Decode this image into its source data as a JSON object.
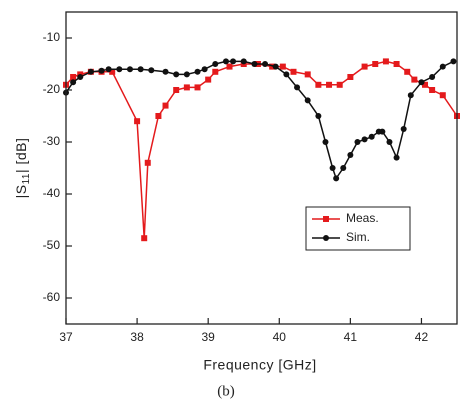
{
  "chart_data": {
    "type": "line",
    "xlabel": "Frequency [GHz]",
    "ylabel_parts": [
      "|S",
      "11",
      "| [dB]"
    ],
    "caption": "(b)",
    "xlim": [
      37,
      42.5
    ],
    "xticks": [
      37,
      38,
      39,
      40,
      41,
      42
    ],
    "ylim": [
      -65,
      -5
    ],
    "yticks": [
      -10,
      -20,
      -30,
      -40,
      -50,
      -60
    ],
    "series": [
      {
        "name": "Meas.",
        "color": "#e41a1c",
        "marker": "square",
        "x": [
          37.0,
          37.1,
          37.2,
          37.35,
          37.5,
          37.65,
          38.0,
          38.1,
          38.15,
          38.3,
          38.4,
          38.55,
          38.7,
          38.85,
          39.0,
          39.1,
          39.3,
          39.5,
          39.7,
          39.9,
          40.05,
          40.2,
          40.4,
          40.55,
          40.7,
          40.85,
          41.0,
          41.2,
          41.35,
          41.5,
          41.65,
          41.8,
          41.9,
          42.05,
          42.15,
          42.3,
          42.5
        ],
        "values": [
          -19,
          -17.5,
          -17,
          -16.5,
          -16.5,
          -16.5,
          -26,
          -48.5,
          -34,
          -25,
          -23,
          -20,
          -19.5,
          -19.5,
          -18,
          -16.5,
          -15.5,
          -15,
          -15,
          -15.5,
          -15.5,
          -16.5,
          -17,
          -19,
          -19,
          -19,
          -17.5,
          -15.5,
          -15,
          -14.5,
          -15,
          -16.5,
          -18,
          -19,
          -20,
          -21,
          -25
        ]
      },
      {
        "name": "Sim.",
        "color": "#111111",
        "marker": "circle",
        "x": [
          37.0,
          37.1,
          37.2,
          37.35,
          37.5,
          37.6,
          37.75,
          37.9,
          38.05,
          38.2,
          38.4,
          38.55,
          38.7,
          38.85,
          38.95,
          39.1,
          39.25,
          39.35,
          39.5,
          39.65,
          39.8,
          39.95,
          40.1,
          40.25,
          40.4,
          40.55,
          40.65,
          40.75,
          40.8,
          40.9,
          41.0,
          41.1,
          41.2,
          41.3,
          41.4,
          41.45,
          41.55,
          41.65,
          41.75,
          41.85,
          42.0,
          42.15,
          42.3,
          42.45
        ],
        "values": [
          -20.5,
          -18.5,
          -17.5,
          -16.5,
          -16.3,
          -16,
          -16,
          -16,
          -16,
          -16.2,
          -16.5,
          -17,
          -17,
          -16.5,
          -16,
          -15,
          -14.5,
          -14.5,
          -14.5,
          -15,
          -15,
          -15.5,
          -17,
          -19.5,
          -22,
          -25,
          -30,
          -35,
          -37,
          -35,
          -32.5,
          -30,
          -29.5,
          -29,
          -28,
          -28,
          -30,
          -33,
          -27.5,
          -21,
          -18.5,
          -17.5,
          -15.5,
          -14.5
        ]
      }
    ]
  }
}
